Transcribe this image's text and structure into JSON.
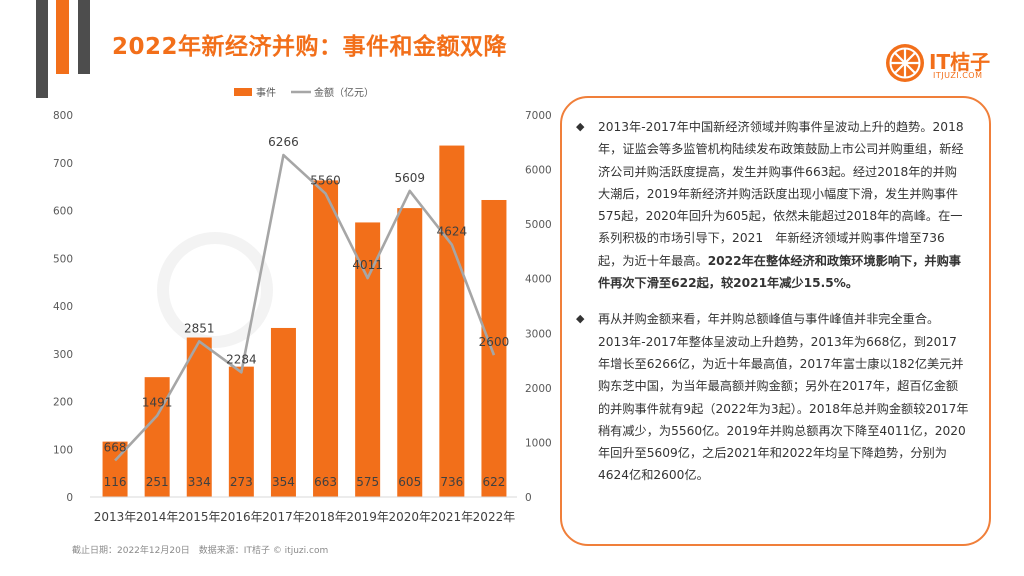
{
  "header": {
    "title": "2022年新经济并购：事件和金额双降"
  },
  "logo": {
    "name": "IT桔子",
    "url": "ITJUZI.COM"
  },
  "chart_data": {
    "type": "bar",
    "categories": [
      "2013年",
      "2014年",
      "2015年",
      "2016年",
      "2017年",
      "2018年",
      "2019年",
      "2020年",
      "2021年",
      "2022年"
    ],
    "series": [
      {
        "name": "事件",
        "kind": "bar",
        "axis": "left",
        "values": [
          116,
          251,
          334,
          273,
          354,
          663,
          575,
          605,
          736,
          622
        ]
      },
      {
        "name": "金额（亿元）",
        "kind": "line",
        "axis": "right",
        "values": [
          668,
          1491,
          2851,
          2284,
          6266,
          5560,
          4011,
          5609,
          4624,
          2600
        ]
      }
    ],
    "ylim_left": [
      0,
      800
    ],
    "yticks_left": [
      0,
      100,
      200,
      300,
      400,
      500,
      600,
      700,
      800
    ],
    "ylim_right": [
      0,
      7000
    ],
    "yticks_right": [
      0,
      1000,
      2000,
      3000,
      4000,
      5000,
      6000,
      7000
    ],
    "legend": "top-center",
    "grid": false,
    "colors": {
      "bar": "#f26f1a",
      "line": "#a6a6a6"
    }
  },
  "commentary": {
    "p1_normal": "2013年-2017年中国新经济领域并购事件呈波动上升的趋势。2018年，证监会等多监管机构陆续发布政策鼓励上市公司并购重组，新经济公司并购活跃度提高，发生并购事件663起。经过2018年的并购大潮后，2019年新经济并购活跃度出现小幅度下滑，发生并购事件575起，2020年回升为605起，依然未能超过2018年的高峰。在一系列积极的市场引导下，2021　年新经济领域并购事件增至736起，为近十年最高。",
    "p1_bold": "2022年在整体经济和政策环境影响下，并购事件再次下滑至622起，较2021年减少15.5%。",
    "p2": "再从并购金额来看，年并购总额峰值与事件峰值并非完全重合。2013年-2017年整体呈波动上升趋势，2013年为668亿，到2017年增长至6266亿，为近十年最高值，2017年富士康以182亿美元并购东芝中国，为当年最高额并购金额；另外在2017年，超百亿金额的并购事件就有9起（2022年为3起）。2018年总并购金额较2017年稍有减少，为5560亿。2019年并购总额再次下降至4011亿，2020年回升至5609亿，之后2021年和2022年均呈下降趋势，分别为4624亿和2600亿。"
  },
  "footer": {
    "text": "截止日期：2022年12月20日　数据来源：IT桔子 © itjuzi.com"
  }
}
